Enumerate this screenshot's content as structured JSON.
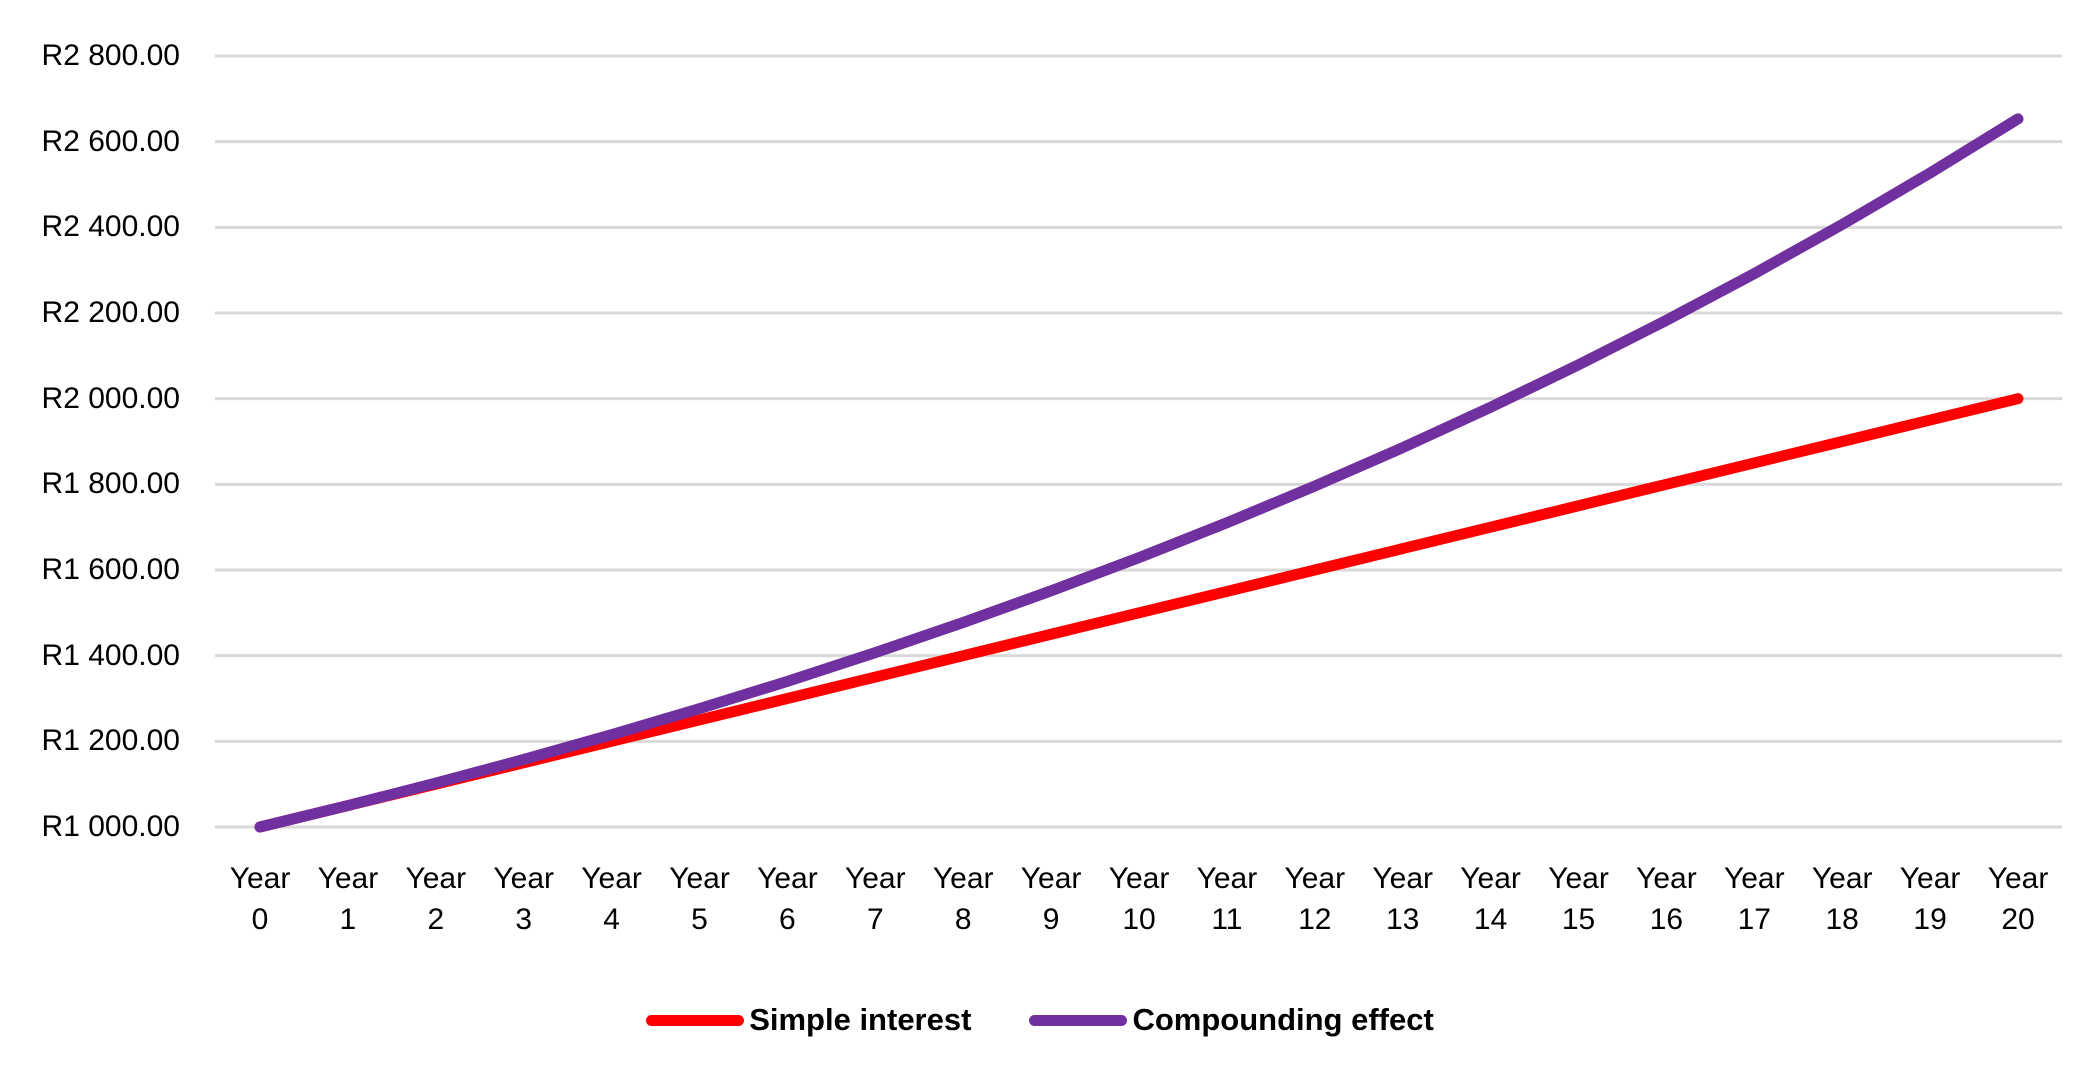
{
  "chart_data": {
    "type": "line",
    "title": "",
    "grid": "horizontal",
    "gridline_color": "#D9D9D9",
    "background_color": "#FFFFFF",
    "legend_position": "bottom",
    "x_axis": {
      "tick_label_prefix": "Year",
      "tick_numbers": [
        0,
        1,
        2,
        3,
        4,
        5,
        6,
        7,
        8,
        9,
        10,
        11,
        12,
        13,
        14,
        15,
        16,
        17,
        18,
        19,
        20
      ]
    },
    "y_axis": {
      "min": 1000,
      "max": 2800,
      "ticks": [
        {
          "label": "R1 000.00",
          "value": 1000
        },
        {
          "label": "R1 200.00",
          "value": 1200
        },
        {
          "label": "R1 400.00",
          "value": 1400
        },
        {
          "label": "R1 600.00",
          "value": 1600
        },
        {
          "label": "R1 800.00",
          "value": 1800
        },
        {
          "label": "R2 000.00",
          "value": 2000
        },
        {
          "label": "R2 200.00",
          "value": 2200
        },
        {
          "label": "R2 400.00",
          "value": 2400
        },
        {
          "label": "R2 600.00",
          "value": 2600
        },
        {
          "label": "R2 800.00",
          "value": 2800
        }
      ]
    },
    "series": [
      {
        "name": "Simple interest",
        "color": "#FF0000",
        "values": [
          1000,
          1050,
          1100,
          1150,
          1200,
          1250,
          1300,
          1350,
          1400,
          1450,
          1500,
          1550,
          1600,
          1650,
          1700,
          1750,
          1800,
          1850,
          1900,
          1950,
          2000
        ]
      },
      {
        "name": "Compounding effect",
        "color": "#7030A0",
        "values": [
          1000,
          1050,
          1102.5,
          1157.63,
          1215.51,
          1276.28,
          1340.1,
          1407.1,
          1477.46,
          1551.33,
          1628.89,
          1710.34,
          1795.86,
          1885.65,
          1979.93,
          2078.93,
          2182.87,
          2292.02,
          2406.62,
          2526.95,
          2653.3
        ]
      }
    ]
  }
}
